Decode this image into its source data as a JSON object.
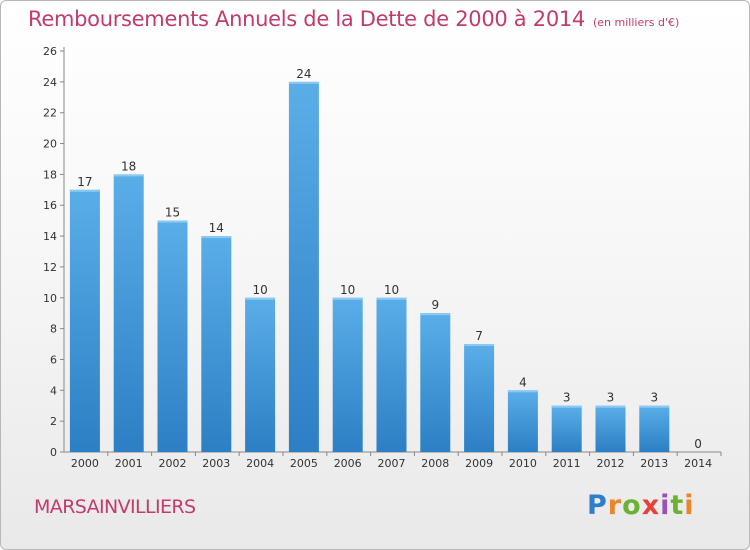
{
  "header": {
    "title": "Remboursements Annuels de la Dette de 2000 à 2014",
    "subtitle": "(en milliers d'€)"
  },
  "footer": {
    "commune": "MARSAINVILLIERS",
    "brand": "Proxiti"
  },
  "colors": {
    "title": "#c23b6d",
    "bar_top": "#5aaee8",
    "bar_bottom": "#2c7fc4"
  },
  "chart_data": {
    "type": "bar",
    "title": "Remboursements Annuels de la Dette de 2000 à 2014",
    "xlabel": "",
    "ylabel": "",
    "categories": [
      "2000",
      "2001",
      "2002",
      "2003",
      "2004",
      "2005",
      "2006",
      "2007",
      "2008",
      "2009",
      "2010",
      "2011",
      "2012",
      "2013",
      "2014"
    ],
    "values": [
      17,
      18,
      15,
      14,
      10,
      24,
      10,
      10,
      9,
      7,
      4,
      3,
      3,
      3,
      0
    ],
    "ylim": [
      0,
      26
    ],
    "yticks": [
      0,
      2,
      4,
      6,
      8,
      10,
      12,
      14,
      16,
      18,
      20,
      22,
      24,
      26
    ],
    "grid": false,
    "legend": "none"
  }
}
